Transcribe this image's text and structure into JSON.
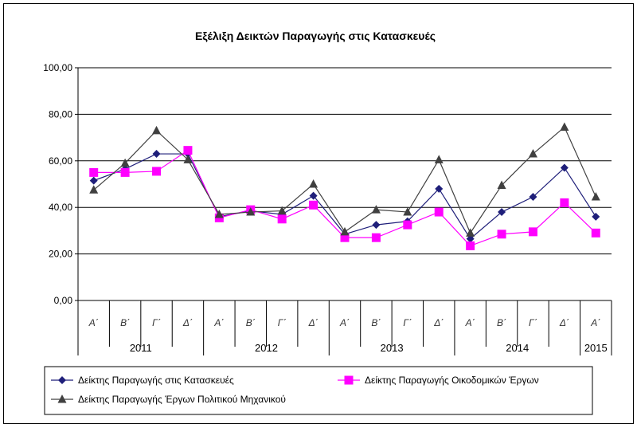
{
  "chart_data": {
    "type": "line",
    "title": "Εξέλιξη Δεικτών Παραγωγής στις Κατασκευές",
    "xlabel": "",
    "ylabel": "",
    "ylim": [
      0,
      100
    ],
    "yticks": [
      "0,00",
      "20,00",
      "40,00",
      "60,00",
      "80,00",
      "100,00"
    ],
    "ytick_values": [
      0,
      20,
      40,
      60,
      80,
      100
    ],
    "grid": true,
    "legend_position": "bottom",
    "categories": [
      "Α΄",
      "Β΄",
      "Γ΄",
      "Δ΄",
      "Α΄",
      "Β΄",
      "Γ΄",
      "Δ΄",
      "Α΄",
      "Β΄",
      "Γ΄",
      "Δ΄",
      "Α΄",
      "Β΄",
      "Γ΄",
      "Δ΄",
      "Α΄"
    ],
    "year_groups": [
      {
        "label": "2011",
        "span": 4
      },
      {
        "label": "2012",
        "span": 4
      },
      {
        "label": "2013",
        "span": 4
      },
      {
        "label": "2014",
        "span": 4
      },
      {
        "label": "2015",
        "span": 1
      }
    ],
    "series": [
      {
        "name": "Δείκτης Παραγωγής στις Κατασκευές",
        "color": "#1f1f7a",
        "marker": "diamond",
        "values": [
          51.5,
          56.5,
          63,
          63,
          36,
          38.5,
          37,
          45,
          28.5,
          32.5,
          34,
          48,
          26.5,
          38,
          44.5,
          57,
          36
        ]
      },
      {
        "name": "Δείκτης Παραγωγής Οικοδομικών Έργων",
        "color": "#ff00ff",
        "marker": "square",
        "values": [
          55,
          55,
          55.5,
          64.5,
          35.5,
          39,
          35,
          41,
          27,
          27,
          32.5,
          38,
          23.5,
          28.5,
          29.5,
          42,
          29
        ]
      },
      {
        "name": "Δείκτης Παραγωγής Έργων Πολιτικού Μηχανικού",
        "color": "#404040",
        "marker": "triangle",
        "values": [
          47.5,
          59,
          73,
          60.5,
          37,
          38,
          38.5,
          50,
          29.5,
          39,
          38,
          60.5,
          29,
          49.5,
          63,
          74.5,
          44.5
        ]
      }
    ]
  }
}
